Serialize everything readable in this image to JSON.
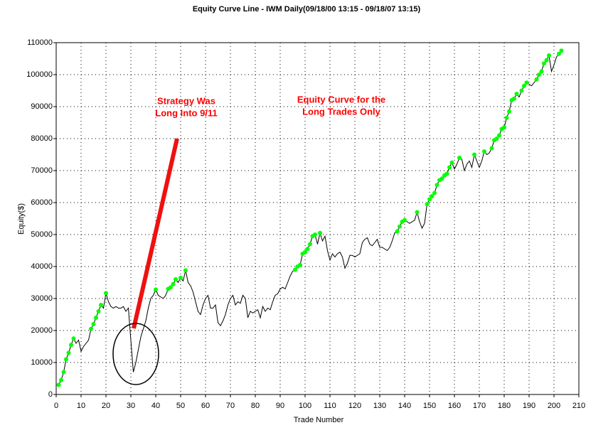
{
  "chart_data": {
    "type": "line",
    "title": "Equity Curve Line - IWM Daily(09/18/00 13:15 - 09/18/07 13:15)",
    "xlabel": "Trade Number",
    "ylabel": "Equity($)",
    "annotations": [
      [
        "Strategy Was",
        "Long Into 9/11"
      ],
      [
        "Equity Curve for the",
        "Long Trades Only"
      ]
    ],
    "color": "#000000",
    "marker_color": "#00ff00",
    "annotation_color": "#ff0000",
    "grid": true,
    "xlim": [
      0,
      210
    ],
    "xticks": [
      0,
      10,
      20,
      30,
      40,
      50,
      60,
      70,
      80,
      90,
      100,
      110,
      120,
      130,
      140,
      150,
      160,
      170,
      180,
      190,
      200,
      210
    ],
    "ylim": [
      0,
      110000
    ],
    "yticks": [
      0,
      10000,
      20000,
      30000,
      40000,
      50000,
      60000,
      70000,
      80000,
      90000,
      100000,
      110000
    ],
    "x": [
      1,
      2,
      3,
      4,
      5,
      6,
      7,
      8,
      9,
      10,
      11,
      12,
      13,
      14,
      15,
      16,
      17,
      18,
      19,
      20,
      21,
      22,
      23,
      24,
      25,
      26,
      27,
      28,
      29,
      30,
      31,
      32,
      33,
      34,
      35,
      36,
      37,
      38,
      39,
      40,
      41,
      42,
      43,
      44,
      45,
      46,
      47,
      48,
      49,
      50,
      51,
      52,
      53,
      54,
      55,
      56,
      57,
      58,
      59,
      60,
      61,
      62,
      63,
      64,
      65,
      66,
      67,
      68,
      69,
      70,
      71,
      72,
      73,
      74,
      75,
      76,
      77,
      78,
      79,
      80,
      81,
      82,
      83,
      84,
      85,
      86,
      87,
      88,
      89,
      90,
      91,
      92,
      93,
      94,
      95,
      96,
      97,
      98,
      99,
      100,
      101,
      102,
      103,
      104,
      105,
      106,
      107,
      108,
      109,
      110,
      111,
      112,
      113,
      114,
      115,
      116,
      117,
      118,
      119,
      120,
      121,
      122,
      123,
      124,
      125,
      126,
      127,
      128,
      129,
      130,
      131,
      132,
      133,
      134,
      135,
      136,
      137,
      138,
      139,
      140,
      141,
      142,
      143,
      144,
      145,
      146,
      147,
      148,
      149,
      150,
      151,
      152,
      153,
      154,
      155,
      156,
      157,
      158,
      159,
      160,
      161,
      162,
      163,
      164,
      165,
      166,
      167,
      168,
      169,
      170,
      171,
      172,
      173,
      174,
      175,
      176,
      177,
      178,
      179,
      180,
      181,
      182,
      183,
      184,
      185,
      186,
      187,
      188,
      189,
      190,
      191,
      192,
      193,
      194,
      195,
      196,
      197,
      198,
      199,
      200,
      201,
      202,
      203
    ],
    "values": [
      3000,
      4500,
      7000,
      11000,
      13000,
      15500,
      17500,
      16000,
      17000,
      13500,
      15000,
      16000,
      17000,
      20500,
      22000,
      24000,
      26000,
      28000,
      27000,
      31700,
      29000,
      27500,
      27000,
      27500,
      27000,
      27000,
      27500,
      26000,
      27000,
      17000,
      7000,
      10000,
      14000,
      18000,
      20500,
      23000,
      27000,
      30000,
      31000,
      32800,
      31000,
      30500,
      30000,
      31000,
      33000,
      33500,
      34500,
      36000,
      35000,
      36500,
      35500,
      38800,
      35000,
      34000,
      32000,
      29000,
      26000,
      25000,
      28000,
      30000,
      31000,
      27000,
      27000,
      28000,
      22500,
      21500,
      23000,
      25000,
      28000,
      30000,
      31000,
      28000,
      29000,
      28500,
      31000,
      30000,
      24000,
      26000,
      25500,
      26000,
      26500,
      24000,
      27500,
      26000,
      27000,
      26500,
      29000,
      31000,
      31500,
      33000,
      33500,
      33000,
      35000,
      37000,
      38500,
      39000,
      40000,
      40500,
      44000,
      44500,
      45500,
      47000,
      49500,
      50000,
      47000,
      50500,
      48000,
      49500,
      45000,
      42000,
      44000,
      43000,
      44000,
      44500,
      43000,
      39500,
      41000,
      43500,
      43500,
      43000,
      43500,
      44000,
      47500,
      48500,
      49000,
      47000,
      46500,
      47500,
      48500,
      46000,
      46000,
      45500,
      45000,
      46000,
      48000,
      50500,
      51000,
      52500,
      54000,
      54500,
      54000,
      53500,
      54000,
      54500,
      57000,
      54000,
      52000,
      53500,
      59500,
      61000,
      62000,
      63000,
      65500,
      67000,
      67500,
      68500,
      69000,
      71000,
      72500,
      70500,
      72000,
      74000,
      73500,
      70000,
      72000,
      73000,
      71000,
      75000,
      73000,
      71000,
      73000,
      76000,
      75000,
      75500,
      77000,
      79500,
      80000,
      81000,
      83000,
      83500,
      86500,
      88500,
      92000,
      92500,
      94000,
      93000,
      95000,
      96500,
      97500,
      97000,
      96500,
      97500,
      98500,
      100000,
      101000,
      103500,
      104500,
      106000,
      101000,
      103000,
      105500,
      106500,
      107500
    ]
  }
}
